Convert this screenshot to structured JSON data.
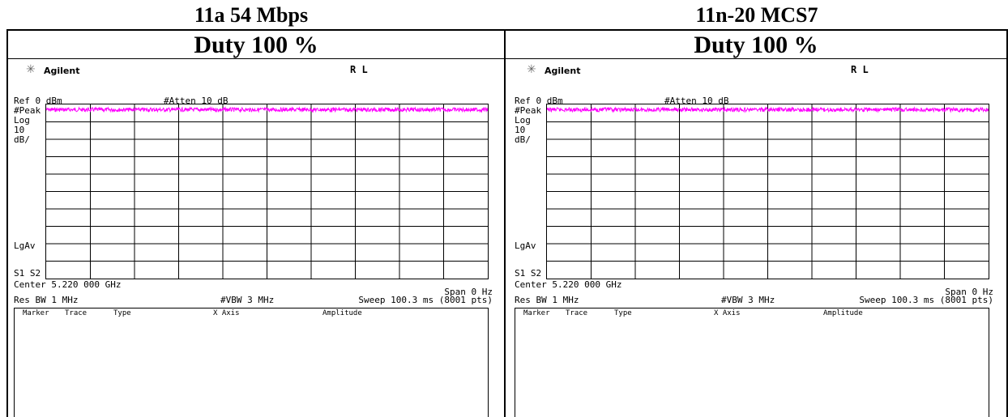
{
  "columns": [
    {
      "title": "11a 54 Mbps",
      "duty": "Duty 100 %",
      "analyzer": {
        "brand": "Agilent",
        "rl": "R L",
        "ref": "Ref 0 dBm",
        "atten": "#Atten 10 dB",
        "left_labels": [
          "#Peak",
          "Log",
          "10",
          "dB/"
        ],
        "lgav": "LgAv",
        "s1s2": "S1  S2",
        "center": "Center 5.220 000 GHz",
        "span": "Span 0 Hz",
        "res_bw": "Res BW 1 MHz",
        "vbw": "#VBW 3 MHz",
        "sweep": "Sweep 100.3 ms (8001 pts)",
        "table_headers": [
          "Marker",
          "Trace",
          "Type",
          "X Axis",
          "Amplitude"
        ],
        "trace_level_db": -3
      }
    },
    {
      "title": "11n-20 MCS7",
      "duty": "Duty 100 %",
      "analyzer": {
        "brand": "Agilent",
        "rl": "R L",
        "ref": "Ref 0 dBm",
        "atten": "#Atten 10 dB",
        "left_labels": [
          "#Peak",
          "Log",
          "10",
          "dB/"
        ],
        "lgav": "LgAv",
        "s1s2": "S1  S2",
        "center": "Center 5.220 000 GHz",
        "span": "Span 0 Hz",
        "res_bw": "Res BW 1 MHz",
        "vbw": "#VBW 3 MHz",
        "sweep": "Sweep 100.3 ms (8001 pts)",
        "table_headers": [
          "Marker",
          "Trace",
          "Type",
          "X Axis",
          "Amplitude"
        ],
        "trace_level_db": -3
      }
    }
  ],
  "colors": {
    "trace": "#ff00ff",
    "grid": "#000000",
    "brand_star": "#666666"
  }
}
